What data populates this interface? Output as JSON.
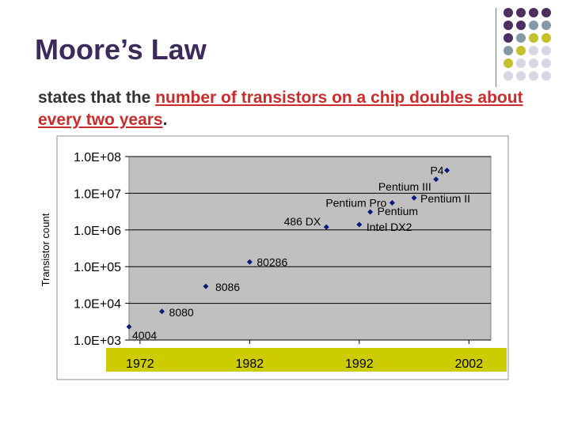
{
  "slide": {
    "title": "Moore’s Law",
    "statement_prefix": "states that the ",
    "statement_highlight": "number of transistors on a chip doubles about every two years",
    "statement_suffix": ".",
    "highlight_color": "#cc2b2b",
    "decor_colors": [
      "#4b2e62",
      "#849aa8",
      "#c3c12c",
      "#d6d6e4"
    ]
  },
  "chart_data": {
    "type": "scatter",
    "ylabel": "Transistor count",
    "xlabel": "",
    "y_scale": "log",
    "ylim": [
      1000,
      100000000
    ],
    "xlim": [
      1971,
      2004
    ],
    "x_ticks": [
      "1972",
      "1982",
      "1992",
      "2002"
    ],
    "y_ticks": [
      "1.0E+08",
      "1.0E+07",
      "1.0E+06",
      "1.0E+05",
      "1.0E+04",
      "1.0E+03"
    ],
    "grid": "horizontal",
    "plot_background": "#c0c0c0",
    "marker_color": "#0b1a7a",
    "x_axis_band_color": "#cccc00",
    "points": [
      {
        "label": "4004",
        "x": 1971,
        "y": 2300
      },
      {
        "label": "8080",
        "x": 1974,
        "y": 6000
      },
      {
        "label": "8086",
        "x": 1978,
        "y": 29000
      },
      {
        "label": "80286",
        "x": 1982,
        "y": 134000
      },
      {
        "label": "486 DX",
        "x": 1989,
        "y": 1200000
      },
      {
        "label": "Intel DX2",
        "x": 1992,
        "y": 1400000
      },
      {
        "label": "Pentium",
        "x": 1993,
        "y": 3100000
      },
      {
        "label": "Pentium Pro",
        "x": 1995,
        "y": 5500000
      },
      {
        "label": "Pentium II",
        "x": 1997,
        "y": 7500000
      },
      {
        "label": "Pentium III",
        "x": 1999,
        "y": 24000000
      },
      {
        "label": "P4",
        "x": 2000,
        "y": 42000000
      }
    ]
  }
}
